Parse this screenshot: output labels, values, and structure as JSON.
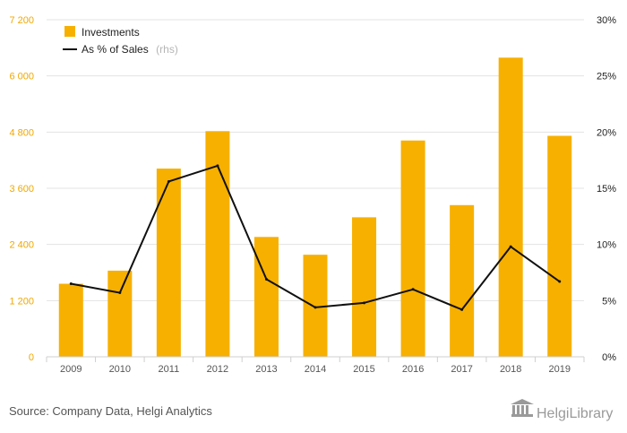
{
  "chart_data": {
    "type": "bar",
    "categories": [
      "2009",
      "2010",
      "2011",
      "2012",
      "2013",
      "2014",
      "2015",
      "2016",
      "2017",
      "2018",
      "2019"
    ],
    "series": [
      {
        "name": "Investments",
        "type": "bar",
        "axis": "left",
        "color": "#f7b000",
        "values": [
          1560,
          1840,
          4020,
          4820,
          2560,
          2180,
          2980,
          4620,
          3240,
          6390,
          4720
        ]
      },
      {
        "name": "As % of Sales",
        "name_suffix": "(rhs)",
        "type": "line",
        "axis": "right",
        "color": "#111111",
        "values": [
          6.5,
          5.7,
          15.6,
          17.0,
          6.9,
          4.4,
          4.8,
          6.0,
          4.2,
          9.8,
          6.7
        ]
      }
    ],
    "yleft": {
      "lim": [
        0,
        7200
      ],
      "ticks": [
        "0",
        "1 200",
        "2 400",
        "3 600",
        "4 800",
        "6 000",
        "7 200"
      ],
      "tick_values": [
        0,
        1200,
        2400,
        3600,
        4800,
        6000,
        7200
      ]
    },
    "yright": {
      "lim": [
        0,
        30
      ],
      "ticks": [
        "0%",
        "5%",
        "10%",
        "15%",
        "20%",
        "25%",
        "30%"
      ],
      "tick_values": [
        0,
        5,
        10,
        15,
        20,
        25,
        30
      ]
    },
    "grid": true,
    "legend_position": "top-left"
  },
  "footer": {
    "source": "Source: Company Data, Helgi Analytics",
    "brand": "HelgiLibrary"
  }
}
